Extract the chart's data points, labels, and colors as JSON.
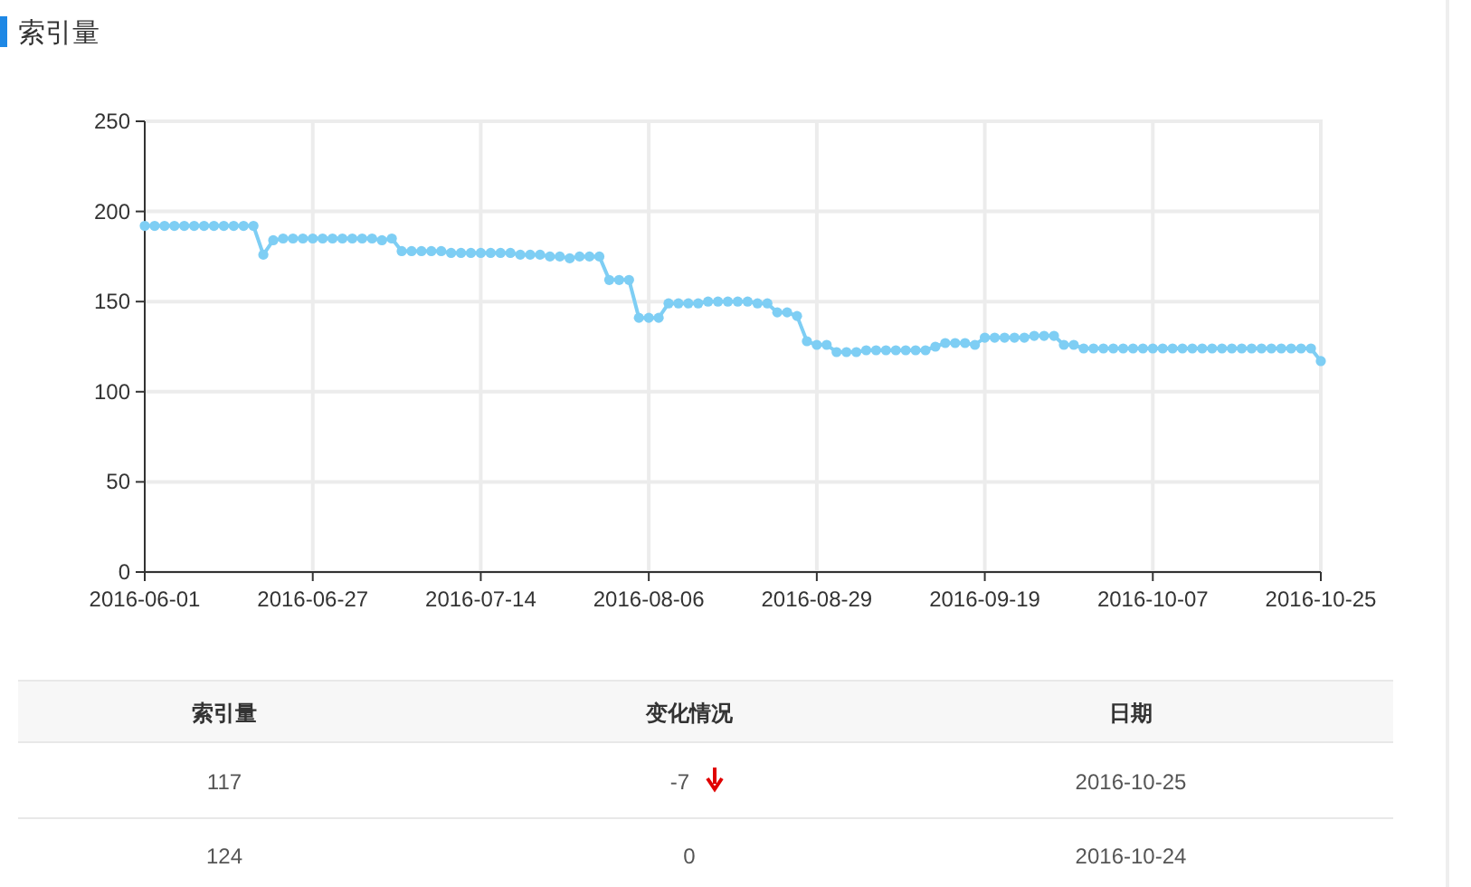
{
  "chart_data": [
    {
      "type": "line",
      "title": "索引量",
      "categories": [
        "2016-06-01",
        null,
        null,
        null,
        null,
        null,
        null,
        null,
        null,
        null,
        null,
        null,
        null,
        null,
        null,
        null,
        null,
        "2016-06-27",
        null,
        null,
        null,
        null,
        null,
        null,
        null,
        null,
        null,
        null,
        null,
        null,
        null,
        null,
        null,
        null,
        "2016-07-14",
        null,
        null,
        null,
        null,
        null,
        null,
        null,
        null,
        null,
        null,
        null,
        null,
        null,
        null,
        null,
        null,
        "2016-08-06",
        null,
        null,
        null,
        null,
        null,
        null,
        null,
        null,
        null,
        null,
        null,
        null,
        null,
        null,
        null,
        null,
        "2016-08-29",
        null,
        null,
        null,
        null,
        null,
        null,
        null,
        null,
        null,
        null,
        null,
        null,
        null,
        null,
        null,
        null,
        "2016-09-19",
        null,
        null,
        null,
        null,
        null,
        null,
        null,
        null,
        null,
        null,
        null,
        null,
        null,
        null,
        null,
        null,
        "2016-10-07",
        null,
        null,
        null,
        null,
        null,
        null,
        null,
        null,
        null,
        null,
        null,
        null,
        null,
        null,
        null,
        null,
        "2016-10-25"
      ],
      "values": [
        192,
        192,
        192,
        192,
        192,
        192,
        192,
        192,
        192,
        192,
        192,
        192,
        176,
        184,
        185,
        185,
        185,
        185,
        185,
        185,
        185,
        185,
        185,
        185,
        184,
        185,
        178,
        178,
        178,
        178,
        178,
        177,
        177,
        177,
        177,
        177,
        177,
        177,
        176,
        176,
        176,
        175,
        175,
        174,
        175,
        175,
        175,
        162,
        162,
        162,
        141,
        141,
        141,
        149,
        149,
        149,
        149,
        150,
        150,
        150,
        150,
        150,
        149,
        149,
        144,
        144,
        142,
        128,
        126,
        126,
        122,
        122,
        122,
        123,
        123,
        123,
        123,
        123,
        123,
        123,
        125,
        127,
        127,
        127,
        126,
        130,
        130,
        130,
        130,
        130,
        131,
        131,
        131,
        126,
        126,
        124,
        124,
        124,
        124,
        124,
        124,
        124,
        124,
        124,
        124,
        124,
        124,
        124,
        124,
        124,
        124,
        124,
        124,
        124,
        124,
        124,
        124,
        124,
        124,
        117
      ],
      "color": "#7ecef4",
      "marker": "circle",
      "grid": true,
      "ylim": [
        0,
        250
      ],
      "yticks": [
        0,
        50,
        100,
        150,
        200,
        250
      ]
    },
    {
      "type": "other",
      "annotations": [
        "索引量",
        "变化情况",
        "日期",
        "117",
        "-7",
        "2016-10-25",
        "124",
        "0",
        "2016-10-24"
      ]
    }
  ]
}
